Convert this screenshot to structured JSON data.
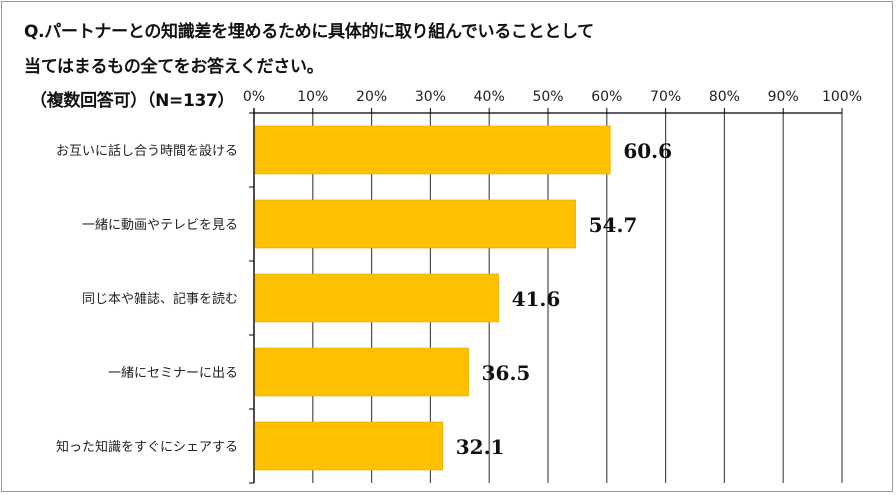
{
  "title": {
    "line1": "Q.パートナーとの知識差を埋めるために具体的に取り組んでいることとして",
    "line2": "当てはまるもの全てをお答えください。",
    "line3": "（複数回答可）（N=137）"
  },
  "colors": {
    "bar": "#FFC000",
    "bar_stroke": "#E5A800",
    "grid": "#4d4d4d",
    "axis": "#000000"
  },
  "chart_data": {
    "type": "bar",
    "orientation": "horizontal",
    "categories": [
      "お互いに話し合う時間を設ける",
      "一緒に動画やテレビを見る",
      "同じ本や雑誌、記事を読む",
      "一緒にセミナーに出る",
      "知った知識をすぐにシェアする"
    ],
    "values": [
      60.6,
      54.7,
      41.6,
      36.5,
      32.1
    ],
    "value_labels": [
      "60.6",
      "54.7",
      "41.6",
      "36.5",
      "32.1"
    ],
    "xlim": [
      0,
      100
    ],
    "x_ticks": [
      "0%",
      "10%",
      "20%",
      "30%",
      "40%",
      "50%",
      "60%",
      "70%",
      "80%",
      "90%",
      "100%"
    ],
    "x_tick_values": [
      0,
      10,
      20,
      30,
      40,
      50,
      60,
      70,
      80,
      90,
      100
    ],
    "axis_position": "top",
    "grid": true,
    "legend": "none"
  }
}
